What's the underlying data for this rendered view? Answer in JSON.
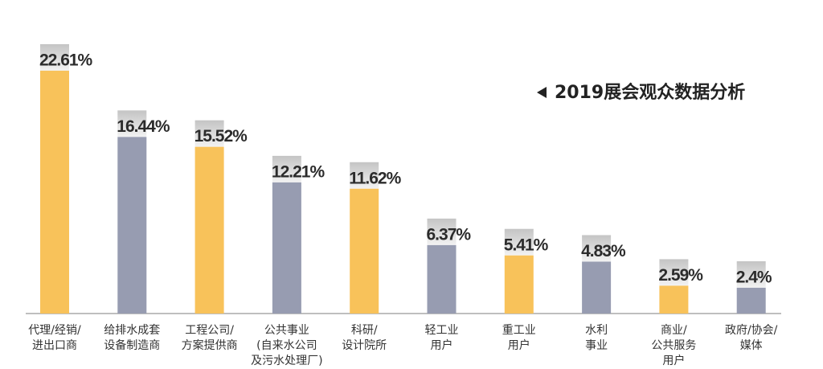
{
  "chart_data": {
    "type": "bar",
    "title": "2019展会观众数据分析",
    "categories": [
      [
        "代理/经销/",
        "进出口商"
      ],
      [
        "给排水成套",
        "设备制造商"
      ],
      [
        "工程公司/",
        "方案提供商"
      ],
      [
        "公共事业",
        "(自来水公司",
        "及污水处理厂)"
      ],
      [
        "科研/",
        "设计院所"
      ],
      [
        "轻工业",
        "用户"
      ],
      [
        "重工业",
        "用户"
      ],
      [
        "水利",
        "事业"
      ],
      [
        "商业/",
        "公共服务",
        "用户"
      ],
      [
        "政府/协会/",
        "媒体"
      ]
    ],
    "values": [
      22.61,
      16.44,
      15.52,
      12.21,
      11.62,
      6.37,
      5.41,
      4.83,
      2.59,
      2.4
    ],
    "value_labels": [
      "22.61%",
      "16.44%",
      "15.52%",
      "12.21%",
      "11.62%",
      "6.37%",
      "5.41%",
      "4.83%",
      "2.59%",
      "2.4%"
    ],
    "colors": [
      "#f8c25a",
      "#979cb1",
      "#f8c25a",
      "#979cb1",
      "#f8c25a",
      "#979cb1",
      "#f8c25a",
      "#979cb1",
      "#f8c25a",
      "#979cb1"
    ]
  }
}
